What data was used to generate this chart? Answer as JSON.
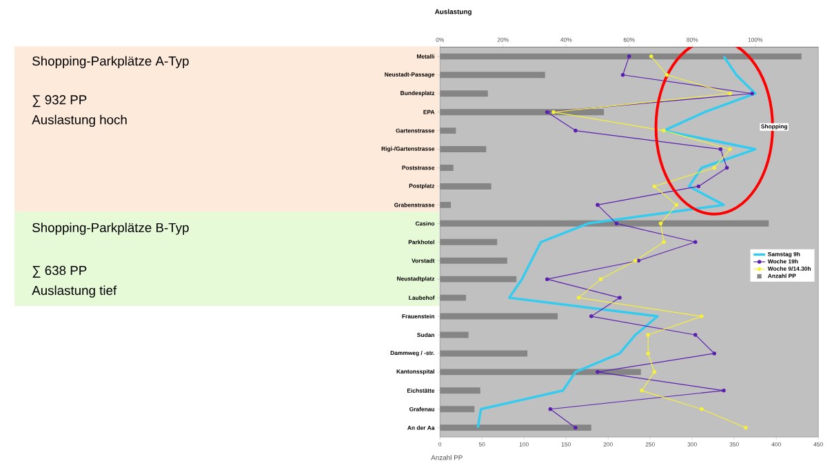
{
  "chart_data": {
    "type": "bar",
    "orientation": "horizontal",
    "x2label": "Auslastung",
    "categories": [
      "Metalli",
      "Neustadt-Passage",
      "Bundesplatz",
      "EPA",
      "Gartenstrasse",
      "Rigi-/Gartenstrasse",
      "Poststrasse",
      "Postplatz",
      "Grabenstrasse",
      "Casino",
      "Parkhotel",
      "Vorstadt",
      "Neustadtplatz",
      "Laubehof",
      "Frauenstein",
      "Sudan",
      "Dammweg / -str.",
      "Kantonsspital",
      "Eichstätte",
      "Grafenau",
      "An der Aa"
    ],
    "series": [
      {
        "name": "Samstag 9h",
        "type": "line",
        "axis": "x2",
        "color": "#33ccf0",
        "marker": "none",
        "values": [
          90,
          94,
          100,
          84,
          71,
          100,
          83,
          79,
          90,
          47,
          32,
          29,
          26,
          22,
          69,
          62,
          57,
          43,
          39,
          13,
          12
        ]
      },
      {
        "name": "Woche 19h",
        "type": "line",
        "axis": "x2",
        "color": "#5a1fb0",
        "marker": "circle",
        "values": [
          60,
          58,
          99,
          34,
          43,
          89,
          91,
          82,
          50,
          56,
          81,
          63,
          34,
          57,
          48,
          81,
          87,
          50,
          90,
          35,
          43
        ]
      },
      {
        "name": "Woche  9/14.30h",
        "type": "line",
        "axis": "x2",
        "color": "#f5f03a",
        "marker": "circle",
        "values": [
          67,
          72,
          92,
          36,
          71,
          92,
          87,
          68,
          75,
          70,
          71,
          62,
          51,
          44,
          83,
          66,
          66,
          68,
          64,
          83,
          97
        ]
      },
      {
        "name": "Anzahl PP",
        "color": "#858585",
        "values": [
          430,
          125,
          57,
          195,
          19,
          55,
          16,
          61,
          13,
          391,
          68,
          80,
          91,
          31,
          140,
          34,
          104,
          239,
          48,
          41,
          180
        ]
      }
    ],
    "xlabel": "Anzahl PP",
    "xlim": [
      0,
      450
    ],
    "xticks": [
      0,
      50,
      100,
      150,
      200,
      250,
      300,
      350,
      400,
      450
    ],
    "x2lim": [
      0,
      120
    ],
    "x2ticks": [
      {
        "value": 0,
        "label": "0%"
      },
      {
        "value": 20,
        "label": "20%"
      },
      {
        "value": 40,
        "label": "40%"
      },
      {
        "value": 60,
        "label": "60%"
      },
      {
        "value": 80,
        "label": "80%"
      },
      {
        "value": 100,
        "label": "100%"
      }
    ],
    "legend": "right",
    "annotations": [
      "Shopping-Parkplätze A-Typ",
      "∑ 932 PP",
      "Auslastung hoch",
      "Shopping-Parkplätze B-Typ",
      "∑ 638 PP",
      "Auslastung tief",
      "Shopping"
    ]
  }
}
